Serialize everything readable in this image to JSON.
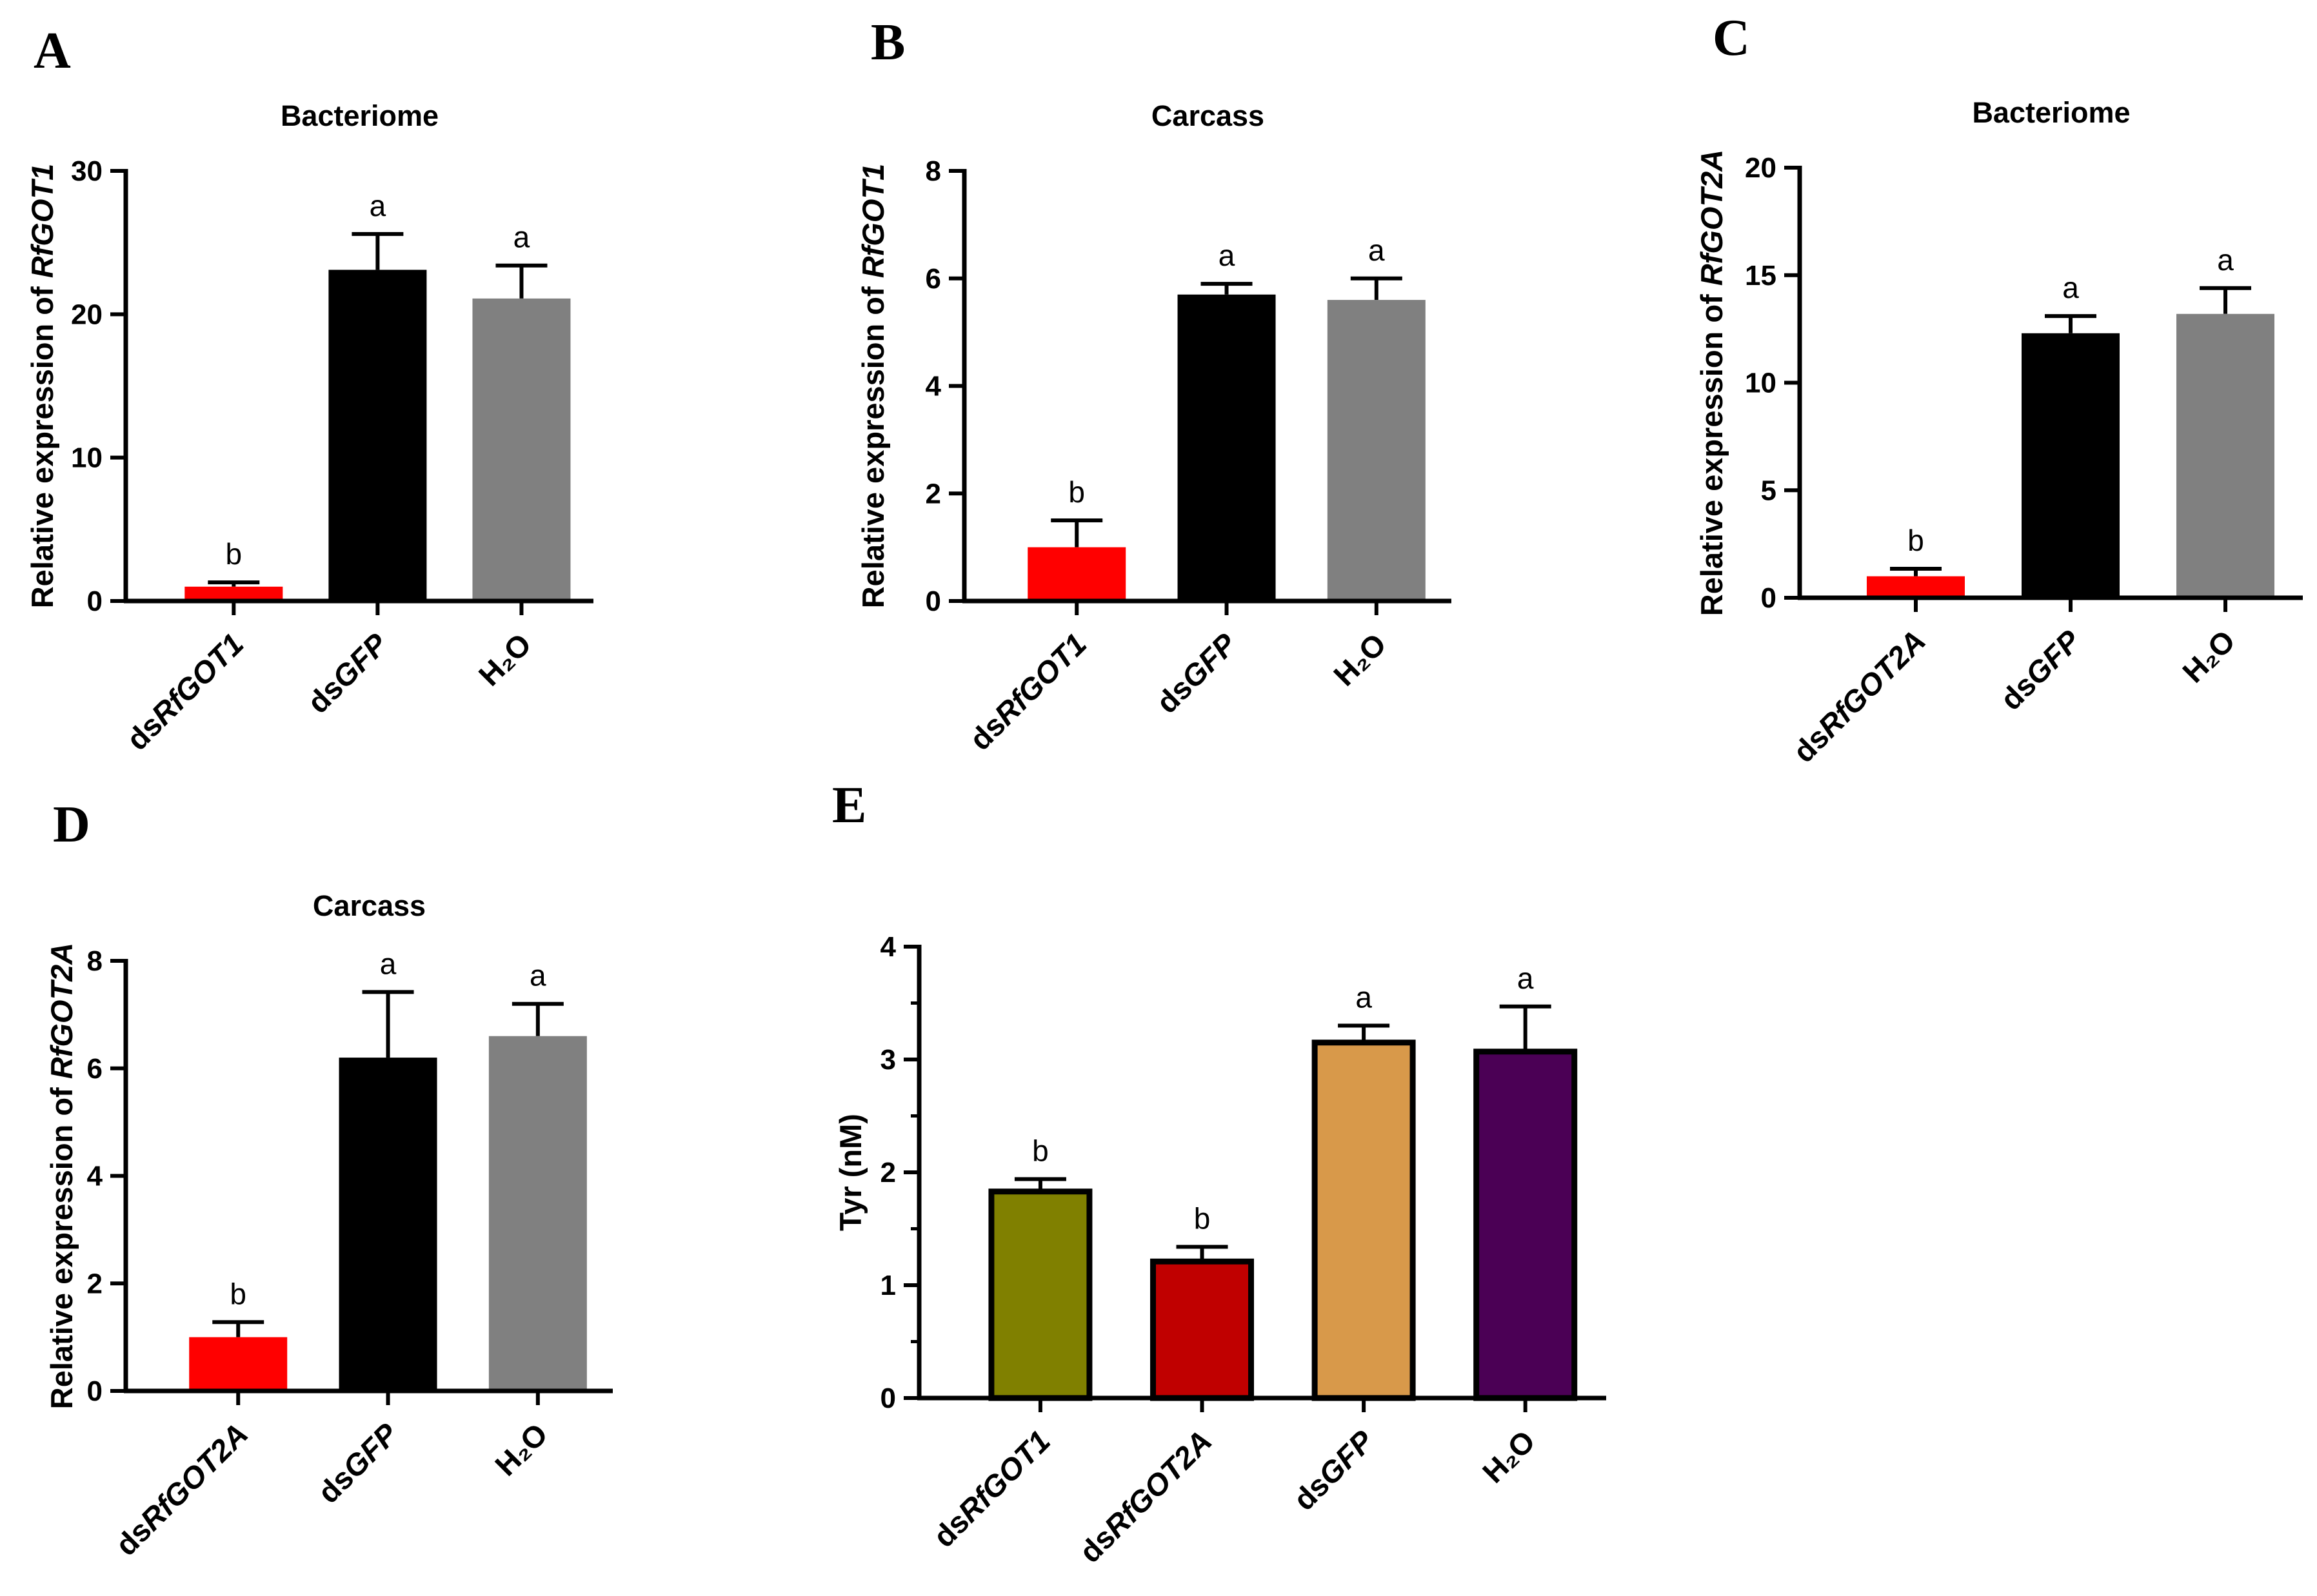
{
  "chart_data": [
    {
      "panel": "A",
      "type": "bar",
      "title": "Bacteriome",
      "ylabel_prefix": "Relative expression of ",
      "ylabel_gene": "RfGOT1",
      "ylim": [
        0,
        30
      ],
      "yticks": [
        0,
        10,
        20,
        30
      ],
      "categories": [
        {
          "prefix": "ds",
          "name": "RfGOT1",
          "italic": true
        },
        {
          "prefix": "ds",
          "name": "GFP",
          "italic": true
        },
        {
          "prefix": "",
          "name": "H₂O",
          "italic": false
        }
      ],
      "values": [
        1.0,
        23.1,
        21.1
      ],
      "errors": [
        0.3,
        2.5,
        2.3
      ],
      "letters": [
        "b",
        "a",
        "a"
      ],
      "colors": [
        "#ff0000",
        "#000000",
        "#808080"
      ],
      "edge": false
    },
    {
      "panel": "B",
      "type": "bar",
      "title": "Carcass",
      "ylabel_prefix": "Relative expression of ",
      "ylabel_gene": "RfGOT1",
      "ylim": [
        0,
        8
      ],
      "yticks": [
        0,
        2,
        4,
        6,
        8
      ],
      "categories": [
        {
          "prefix": "ds",
          "name": "RfGOT1",
          "italic": true
        },
        {
          "prefix": "ds",
          "name": "GFP",
          "italic": true
        },
        {
          "prefix": "",
          "name": "H₂O",
          "italic": false
        }
      ],
      "values": [
        1.0,
        5.7,
        5.6
      ],
      "errors": [
        0.5,
        0.2,
        0.4
      ],
      "letters": [
        "b",
        "a",
        "a"
      ],
      "colors": [
        "#ff0000",
        "#000000",
        "#808080"
      ],
      "edge": false
    },
    {
      "panel": "C",
      "type": "bar",
      "title": "Bacteriome",
      "ylabel_prefix": "Relative expression of ",
      "ylabel_gene": "RfGOT2A",
      "ylim": [
        0,
        20
      ],
      "yticks": [
        0,
        5,
        10,
        15,
        20
      ],
      "categories": [
        {
          "prefix": "ds",
          "name": "RfGOT2A",
          "italic": true
        },
        {
          "prefix": "ds",
          "name": "GFP",
          "italic": true
        },
        {
          "prefix": "",
          "name": "H₂O",
          "italic": false
        }
      ],
      "values": [
        1.0,
        12.3,
        13.2
      ],
      "errors": [
        0.35,
        0.8,
        1.2
      ],
      "letters": [
        "b",
        "a",
        "a"
      ],
      "colors": [
        "#ff0000",
        "#000000",
        "#808080"
      ],
      "edge": false
    },
    {
      "panel": "D",
      "type": "bar",
      "title": "Carcass",
      "ylabel_prefix": "Relative expression of ",
      "ylabel_gene": "RfGOT2A",
      "ylim": [
        0,
        8
      ],
      "yticks": [
        0,
        2,
        4,
        6,
        8
      ],
      "categories": [
        {
          "prefix": "ds",
          "name": "RfGOT2A",
          "italic": true
        },
        {
          "prefix": "ds",
          "name": "GFP",
          "italic": true
        },
        {
          "prefix": "",
          "name": "H₂O",
          "italic": false
        }
      ],
      "values": [
        1.0,
        6.2,
        6.6
      ],
      "errors": [
        0.28,
        1.22,
        0.6
      ],
      "letters": [
        "b",
        "a",
        "a"
      ],
      "colors": [
        "#ff0000",
        "#000000",
        "#808080"
      ],
      "edge": false
    },
    {
      "panel": "E",
      "type": "bar",
      "title": "",
      "ylabel_prefix": "Tyr (nM)",
      "ylabel_gene": "",
      "ylim": [
        0,
        4
      ],
      "yticks": [
        0,
        1,
        2,
        3,
        4
      ],
      "categories": [
        {
          "prefix": "ds",
          "name": "RfGOT1",
          "italic": true
        },
        {
          "prefix": "ds",
          "name": "RfGOT2A",
          "italic": true
        },
        {
          "prefix": "ds",
          "name": "GFP",
          "italic": true
        },
        {
          "prefix": "",
          "name": "H₂O",
          "italic": false
        }
      ],
      "values": [
        1.83,
        1.21,
        3.15,
        3.07
      ],
      "errors": [
        0.11,
        0.13,
        0.15,
        0.4
      ],
      "letters": [
        "b",
        "b",
        "a",
        "a"
      ],
      "colors": [
        "#808000",
        "#c00000",
        "#d8994a",
        "#4b0055"
      ],
      "edge": true
    }
  ]
}
